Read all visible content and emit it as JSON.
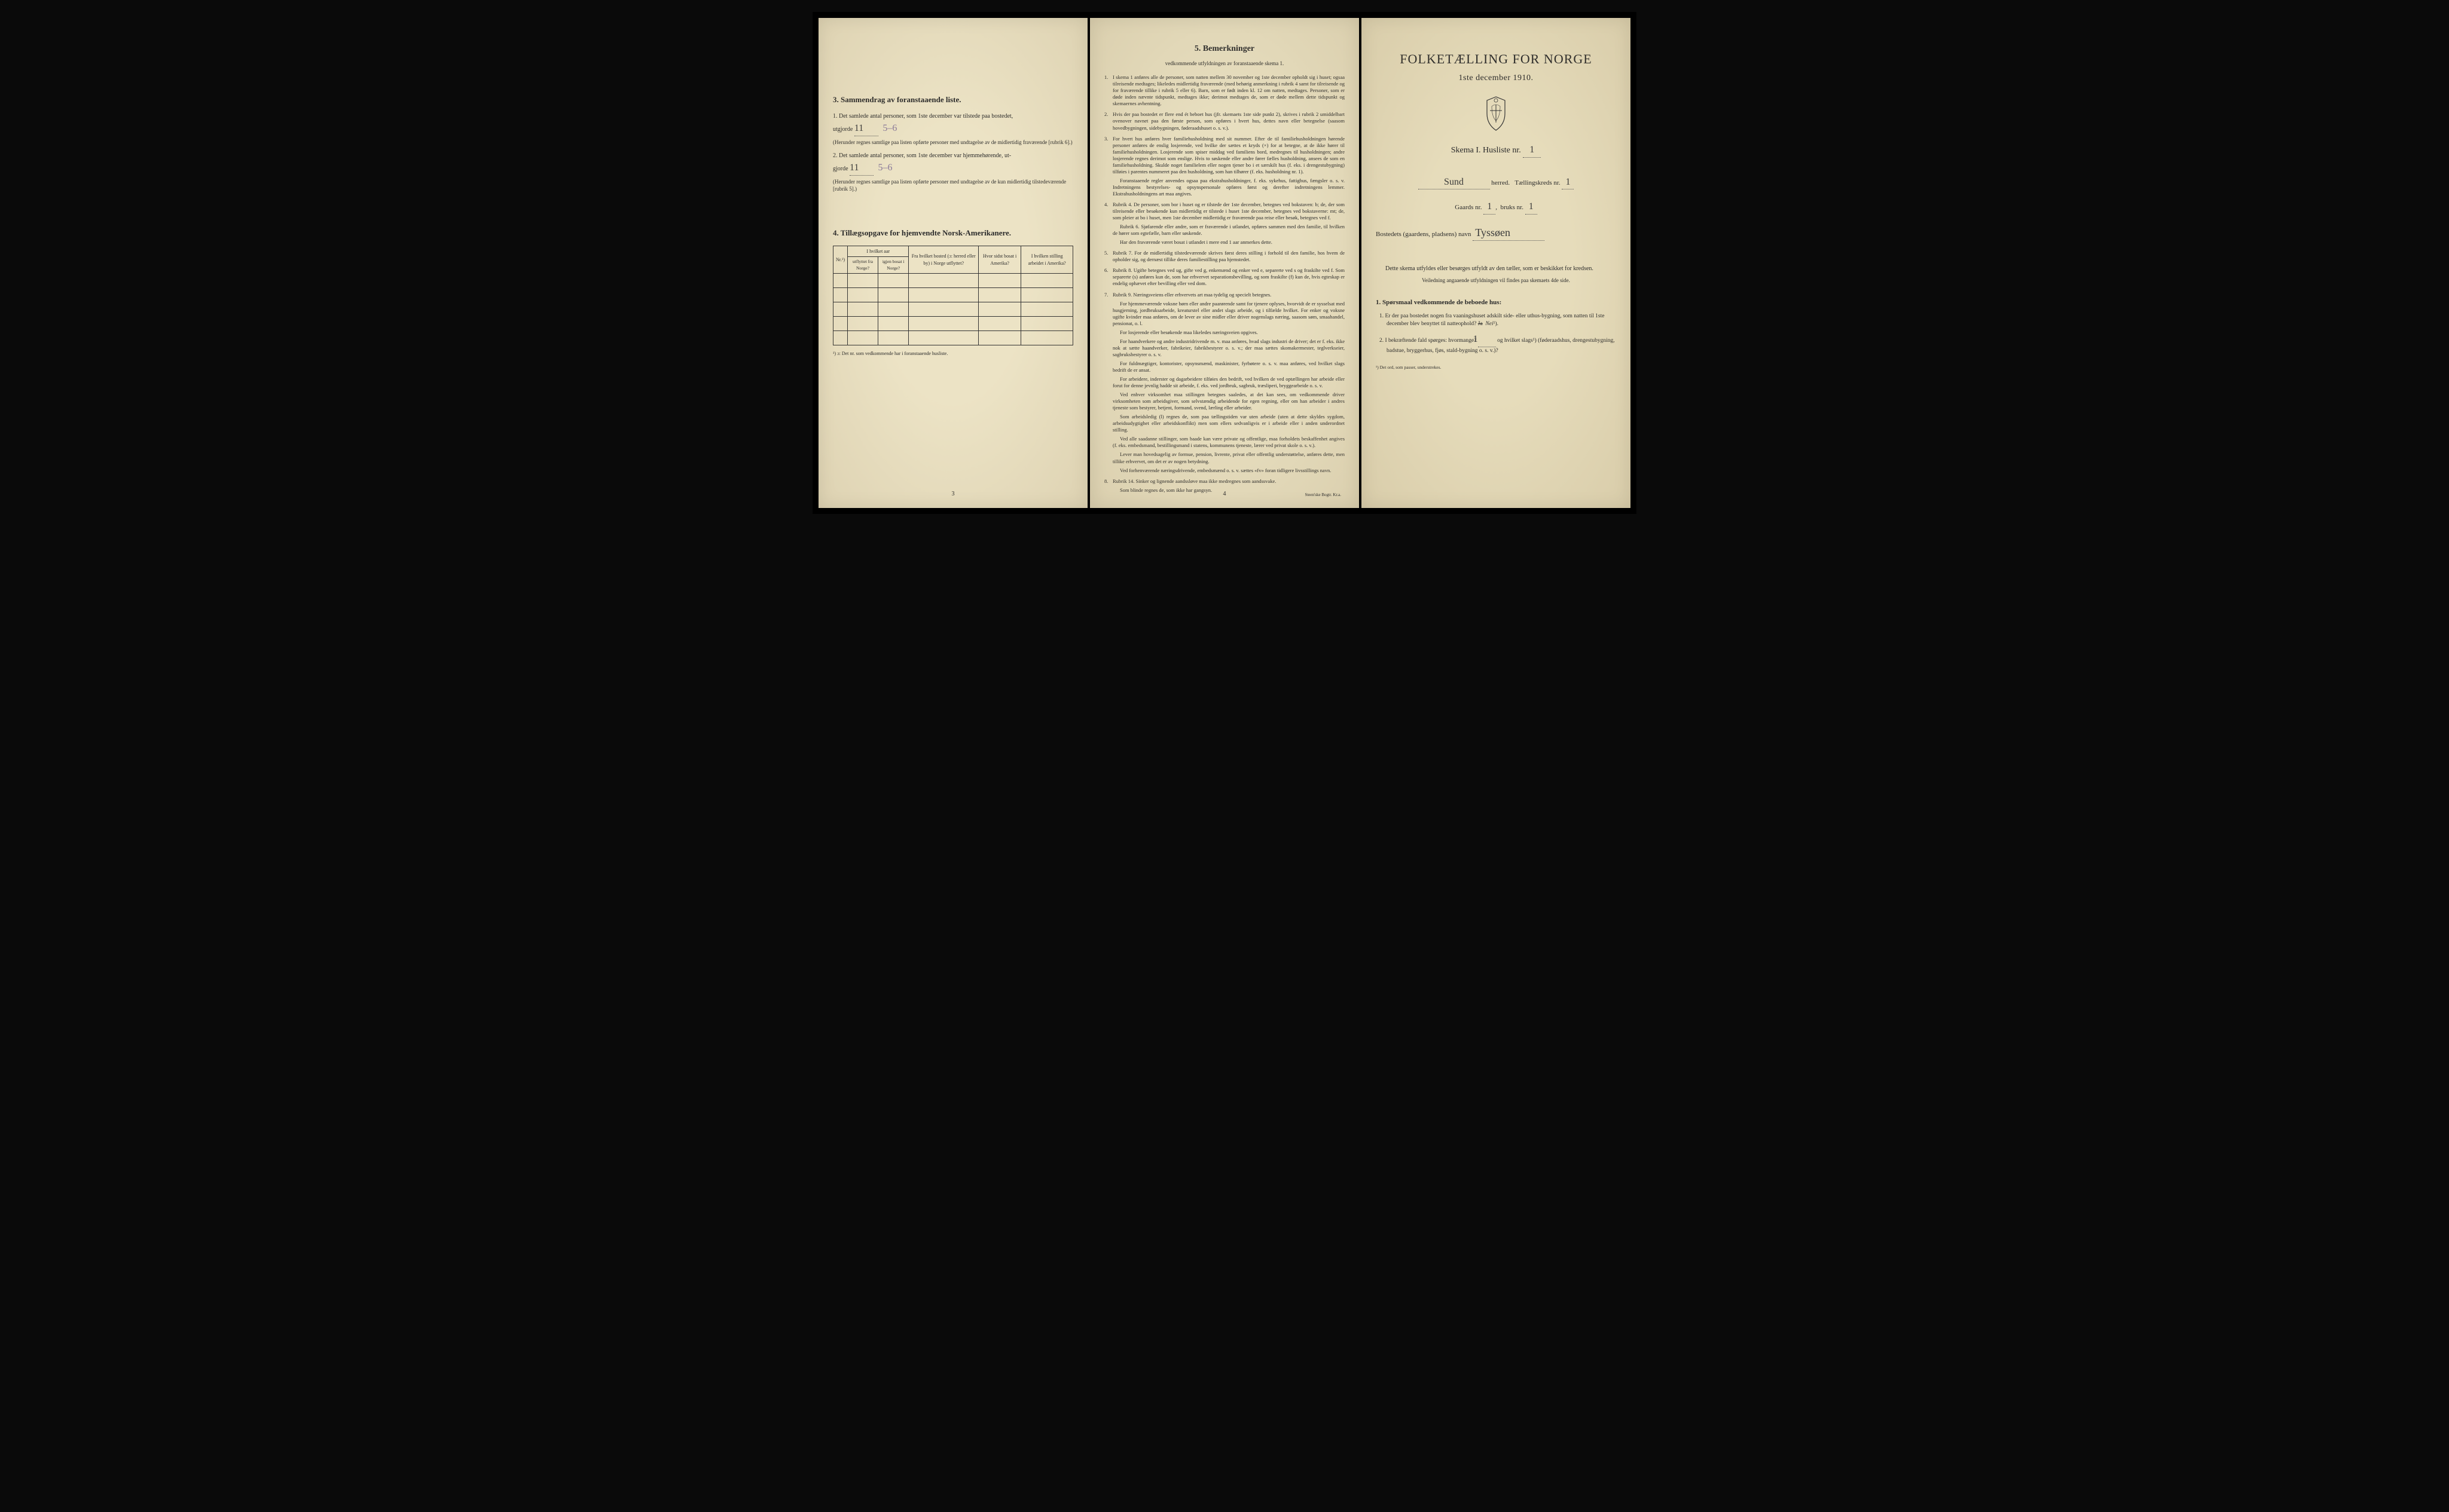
{
  "colors": {
    "paper": "#e8dfc0",
    "ink": "#2a2a2a",
    "handwriting": "#3a3a3a",
    "background": "#0a0a0a"
  },
  "typography": {
    "body_fontsize": 10,
    "title_fontsize": 22,
    "heading_fontsize": 14
  },
  "page3": {
    "section3_title": "3.   Sammendrag av foranstaaende liste.",
    "item1_text": "Det samlede antal personer, som 1ste december var tilstede paa bostedet,",
    "item1_prefix": "utgjorde",
    "item1_value_hand": "11",
    "item1_value_crossed": "5–6",
    "item1_paren": "(Herunder regnes samtlige paa listen opførte personer med undtagelse av de midlertidig fraværende [rubrik 6].)",
    "item2_text": "Det samlede antal personer, som 1ste december var hjemmehørende, ut-",
    "item2_prefix": "gjorde",
    "item2_value_hand": "11",
    "item2_value_crossed": "5–6",
    "item2_paren": "(Herunder regnes samtlige paa listen opførte personer med undtagelse av de kun midlertidig tilstedeværende [rubrik 5].)",
    "section4_title": "4.  Tillægsopgave for hjemvendte Norsk-Amerikanere.",
    "table_headers": {
      "col1": "Nr.¹)",
      "col2_top": "I hvilket aar",
      "col2a": "utflyttet fra Norge?",
      "col2b": "igjen bosat i Norge?",
      "col3": "Fra hvilket bosted (ɔ: herred eller by) i Norge utflyttet?",
      "col4": "Hvor sidst bosat i Amerika?",
      "col5": "I hvilken stilling arbeidet i Amerika?"
    },
    "table_rows": 5,
    "footnote": "¹) ɔ: Det nr. som vedkommende har i foranstaaende husliste.",
    "page_number": "3"
  },
  "page4": {
    "title": "5.   Bemerkninger",
    "subtitle": "vedkommende utfyldningen av foranstaaende skema 1.",
    "items": [
      {
        "num": "1.",
        "text": "I skema 1 anføres alle de personer, som natten mellem 30 november og 1ste december opholdt sig i huset; ogsaa tilreisende medtages; likeledes midlertidig fraværende (med behørig anmerkning i rubrik 4 samt for tilreisende og for fraværende tillike i rubrik 5 eller 6). Barn, som er født inden kl. 12 om natten, medtages. Personer, som er døde inden nævnte tidspunkt, medtages ikke; derimot medtages de, som er døde mellem dette tidspunkt og skemaernes avhentning."
      },
      {
        "num": "2.",
        "text": "Hvis der paa bostedet er flere end ét beboet hus (jfr. skemaets 1ste side punkt 2), skrives i rubrik 2 umiddelbart ovenover navnet paa den første person, som opføres i hvert hus, dettes navn eller betegnelse (saasom hovedbygningen, sidebygningen, føderaadshuset o. s. v.)."
      },
      {
        "num": "3.",
        "text": "For hvert hus anføres hver familiehusholdning med sit nummer. Efter de til familiehusholdningen hørende personer anføres de enslig losjerende, ved hvilke der sættes et kryds (×) for at betegne, at de ikke hører til familiehusholdningen. Losjerende som spiser middag ved familiens bord, medregnes til husholdningen; andre losjerende regnes derimot som enslige. Hvis to søskende eller andre fører fælles husholdning, ansees de som en familiehusholdning. Skulde noget familielem eller nogen tjener bo i et særskilt hus (f. eks. i drengestubygning) tilføies i parentes nummeret paa den husholdning, som han tilhører (f. eks. husholdning nr. 1).",
        "subs": [
          "Foranstaaende regler anvendes ogsaa paa ekstrahusholdninger, f. eks. sykehus, fattighus, fængsler o. s. v. Indretningens bestyrelses- og opsynspersonale opføres først og derefter indretningens lemmer. Ekstrahusholdningens art maa angives."
        ]
      },
      {
        "num": "4.",
        "text": "Rubrik 4. De personer, som bor i huset og er tilstede der 1ste december, betegnes ved bokstaven: b; de, der som tilreisende eller besøkende kun midlertidig er tilstede i huset 1ste december, betegnes ved bokstaverne: mt; de, som pleier at bo i huset, men 1ste december midlertidig er fraværende paa reise eller besøk, betegnes ved f.",
        "subs": [
          "Rubrik 6. Sjøfarende eller andre, som er fraværende i utlandet, opføres sammen med den familie, til hvilken de hører som egtefælle, barn eller søskende.",
          "Har den fraværende været bosat i utlandet i mere end 1 aar anmerkes dette."
        ]
      },
      {
        "num": "5.",
        "text": "Rubrik 7. For de midlertidig tilstedeværende skrives først deres stilling i forhold til den familie, hos hvem de opholder sig, og dernæst tillike deres familiestilling paa hjemstedet."
      },
      {
        "num": "6.",
        "text": "Rubrik 8. Ugifte betegnes ved ug, gifte ved g, enkemænd og enker ved e, separerte ved s og fraskilte ved f. Som separerte (s) anføres kun de, som har erhvervet separationsbevilling, og som fraskilte (f) kun de, hvis egteskap er endelig ophævet efter bevilling eller ved dom."
      },
      {
        "num": "7.",
        "text": "Rubrik 9. Næringsveiens eller erhvervets art maa tydelig og specielt betegnes.",
        "subs": [
          "For hjemmeværende voksne børn eller andre paarørende samt for tjenere oplyses, hvorvidt de er sysselsat med husgjerning, jordbruksarbeide, kreaturstel eller andet slags arbeide, og i tilfælde hvilket. For enker og voksne ugifte kvinder maa anføres, om de lever av sine midler eller driver nogenslags næring, saasom søm, smaahandel, pensionat, o. l.",
          "For losjerende eller besøkende maa likeledes næringsveien opgives.",
          "For haandverkere og andre industridrivende m. v. maa anføres, hvad slags industri de driver; det er f. eks. ikke nok at sætte haandverker, fabrikeier, fabrikbestyrer o. s. v.; der maa sættes skomakermester, teglverkseier, sagbruksbestyrer o. s. v.",
          "For fuldmægtiger, kontorister, opsynsmænd, maskinister, fyrbøtere o. s. v. maa anføres, ved hvilket slags bedrift de er ansat.",
          "For arbeidere, inderster og dagarbeidere tilføies den bedrift, ved hvilken de ved optællingen har arbeide eller forut for denne jevnlig hadde sit arbeide, f. eks. ved jordbruk, sagbruk, træsliperi, bryggearbeide o. s. v.",
          "Ved enhver virksomhet maa stillingen betegnes saaledes, at det kan sees, om vedkommende driver virksomheten som arbeidsgiver, som selvstændig arbeidende for egen regning, eller om han arbeider i andres tjeneste som bestyrer, betjent, formand, svend, lærling eller arbeider.",
          "Som arbeidsledig (l) regnes de, som paa tællingstiden var uten arbeide (uten at dette skyldes sygdom, arbeidsudygtighet eller arbeidskonflikt) men som ellers sedvanligvis er i arbeide eller i anden underordnet stilling.",
          "Ved alle saadanne stillinger, som baade kan være private og offentlige, maa forholdets beskaffenhet angives (f. eks. embedsmand, bestillingsmand i statens, kommunens tjeneste, lærer ved privat skole o. s. v.).",
          "Lever man hovedsagelig av formue, pension, livrente, privat eller offentlig understøttelse, anføres dette, men tillike erhvervet, om det er av nogen betydning.",
          "Ved forhenværende næringsdrivende, embedsmænd o. s. v. sættes «fv» foran tidligere livsstillings navn."
        ]
      },
      {
        "num": "8.",
        "text": "Rubrik 14. Sinker og lignende aandssløve maa ikke medregnes som aandssvake.",
        "subs": [
          "Som blinde regnes de, som ikke har gangsyn."
        ]
      }
    ],
    "page_number": "4",
    "printer": "Steen'ske Bogtr. Kr.a."
  },
  "page1": {
    "main_title": "FOLKETÆLLING FOR NORGE",
    "date": "1ste december 1910.",
    "skema_label": "Skema I.   Husliste nr.",
    "husliste_nr": "1",
    "herred_label": "herred.",
    "herred_value": "Sund",
    "tellingskreds_label": "Tællingskreds nr.",
    "tellingskreds_value": "1",
    "gaards_label": "Gaards nr.",
    "gaards_value": "1",
    "bruks_label": "bruks nr.",
    "bruks_value": "1",
    "bosteds_label": "Bostedets (gaardens, pladsens) navn",
    "bosteds_value": "Tyssøen",
    "instructions_main": "Dette skema utfyldes eller besørges utfyldt av den tæller, som er beskikket for kredsen.",
    "instructions_sub": "Veiledning angaaende utfyldningen vil findes paa skemaets 4de side.",
    "questions_title": "1. Spørsmaal vedkommende de beboede hus:",
    "q1": "1.  Er der paa bostedet nogen fra vaaningshuset adskilt side- eller uthus-bygning, som natten til 1ste december blev benyttet til natteophold?",
    "q1_ja": "Ja",
    "q1_nei": "Nei",
    "q1_sup": "¹).",
    "q2": "2.  I bekræftende fald spørges: hvormange?",
    "q2_value": "1",
    "q2_rest": "og hvilket slags¹) (føderaadshus, drengestubygning, badstue, bryggerhus, fjøs, stald-bygning o. s. v.)?",
    "note": "¹) Det ord, som passer, understrekes."
  }
}
